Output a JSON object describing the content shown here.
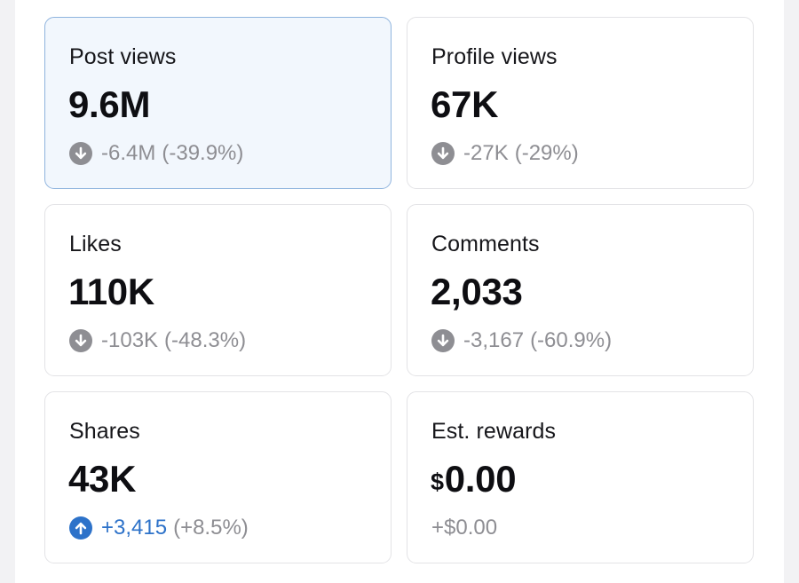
{
  "colors": {
    "page_background": "#f2f2f4",
    "card_background": "#ffffff",
    "selected_card_background": "#f2f7fd",
    "selected_card_border": "#8fb4de",
    "card_border": "#e3e3e6",
    "negative_change": "#8e8e93",
    "positive_change": "#2d72c9"
  },
  "metrics": [
    {
      "label": "Post views",
      "value": "9.6M",
      "change": "-6.4M",
      "change_pct": "(-39.9%)",
      "trend": "down",
      "icon": "arrow-down-circle-icon",
      "selected": true
    },
    {
      "label": "Profile views",
      "value": "67K",
      "change": "-27K",
      "change_pct": "(-29%)",
      "trend": "down",
      "icon": "arrow-down-circle-icon",
      "selected": false
    },
    {
      "label": "Likes",
      "value": "110K",
      "change": "-103K",
      "change_pct": "(-48.3%)",
      "trend": "down",
      "icon": "arrow-down-circle-icon",
      "selected": false
    },
    {
      "label": "Comments",
      "value": "2,033",
      "change": "-3,167",
      "change_pct": "(-60.9%)",
      "trend": "down",
      "icon": "arrow-down-circle-icon",
      "selected": false
    },
    {
      "label": "Shares",
      "value": "43K",
      "change": "+3,415",
      "change_pct": "(+8.5%)",
      "trend": "up",
      "icon": "arrow-up-circle-icon",
      "selected": false
    },
    {
      "label": "Est. rewards",
      "currency": "$",
      "value": "0.00",
      "change": "+$0.00",
      "trend": "none",
      "selected": false
    }
  ]
}
